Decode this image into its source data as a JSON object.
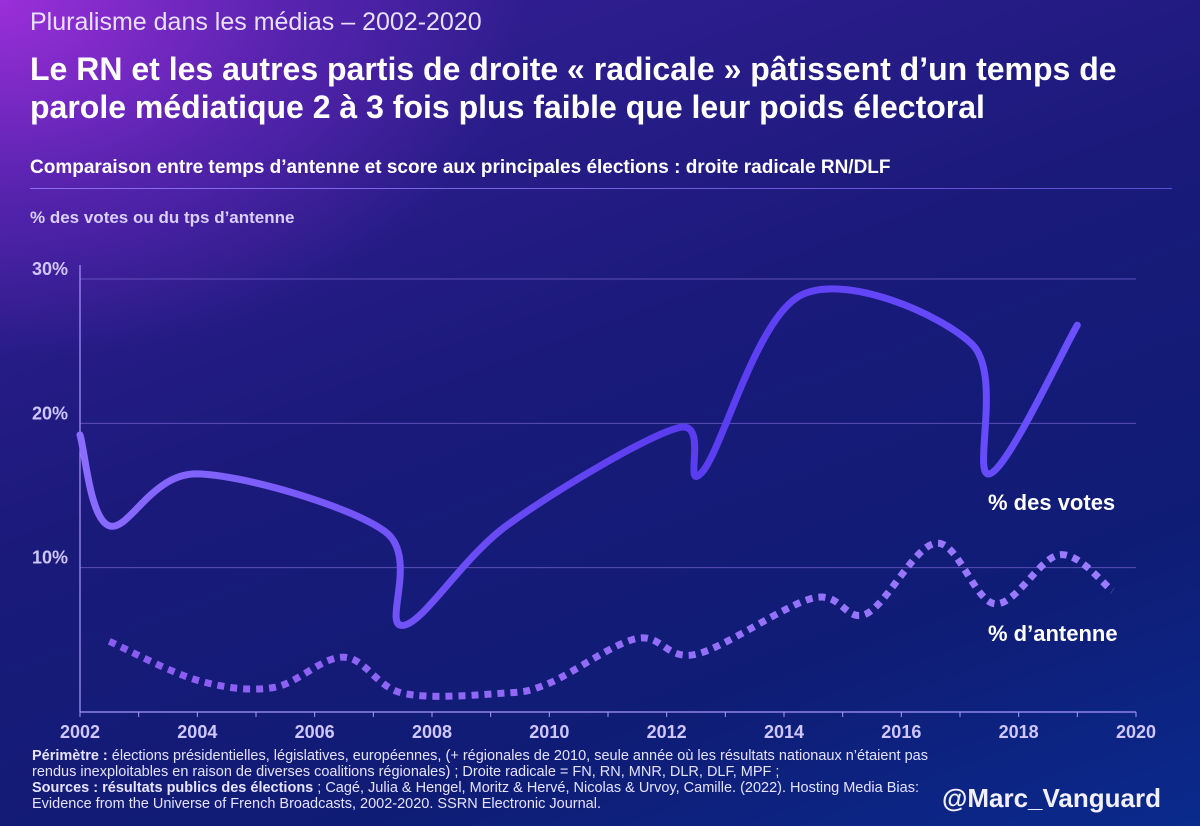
{
  "kicker": "Pluralisme dans les médias – 2002-2020",
  "headline": "Le RN et les autres partis de droite « radicale » pâtissent d’un temps de parole médiatique 2 à 3 fois plus faible que leur poids électoral",
  "subtitle": "Comparaison entre temps d’antenne et score aux principales élections : droite radicale RN/DLF",
  "footnote": {
    "perimetre_label": "Périmètre :",
    "perimetre_text": " élections présidentielles, législatives, européennes, (+ régionales de 2010, seule année où les résultats nationaux n’étaient pas rendus inexploitables en raison de diverses coalitions régionales) ; Droite radicale = FN, RN, MNR, DLR, DLF, MPF ;",
    "sources_label": "Sources : résultats publics des élections",
    "sources_text": " ; Cagé, Julia & Hengel, Moritz & Hervé, Nicolas & Urvoy, Camille. (2022). Hosting Media Bias: Evidence from the Universe of French Broadcasts, 2002-2020. SSRN Electronic Journal."
  },
  "handle": "@Marc_Vanguard",
  "colors": {
    "votes": "#5a3cf0",
    "antenne": "#8c6cf4",
    "grid": "#7864d2",
    "tick_text": "#cfc6ff"
  },
  "chart_data": {
    "type": "line",
    "title": "Comparaison entre temps d’antenne et score aux principales élections : droite radicale RN/DLF",
    "ylabel": "% des votes ou du tps d’antenne",
    "xlabel": "",
    "xlim": [
      2002,
      2020
    ],
    "ylim": [
      0,
      30
    ],
    "x_ticks": [
      {
        "value": 2002,
        "label": "2002"
      },
      {
        "value": 2004,
        "label": "2004"
      },
      {
        "value": 2006,
        "label": "2006"
      },
      {
        "value": 2008,
        "label": "2008"
      },
      {
        "value": 2010,
        "label": "2010"
      },
      {
        "value": 2012,
        "label": "2012"
      },
      {
        "value": 2014,
        "label": "2014"
      },
      {
        "value": 2016,
        "label": "2016"
      },
      {
        "value": 2018,
        "label": "2018"
      },
      {
        "value": 2020,
        "label": "2020"
      }
    ],
    "y_ticks": [
      {
        "value": 10,
        "label": "10%"
      },
      {
        "value": 20,
        "label": "20%"
      },
      {
        "value": 30,
        "label": "30%"
      }
    ],
    "grid": true,
    "series": [
      {
        "name": "% des votes",
        "style": "solid",
        "points": [
          [
            2002,
            19.2
          ],
          [
            2002.5,
            12.9
          ],
          [
            2004,
            16.5
          ],
          [
            2007.2,
            12.5
          ],
          [
            2007.5,
            6.0
          ],
          [
            2009.3,
            13.0
          ],
          [
            2012.2,
            19.7
          ],
          [
            2012.6,
            16.6
          ],
          [
            2014.3,
            28.9
          ],
          [
            2017.2,
            25.5
          ],
          [
            2017.5,
            16.5
          ],
          [
            2019.0,
            26.8
          ]
        ]
      },
      {
        "name": "% d’antenne",
        "style": "dotted",
        "points": [
          [
            2002.5,
            4.9
          ],
          [
            2004,
            2.2
          ],
          [
            2005.3,
            1.7
          ],
          [
            2006.5,
            3.8
          ],
          [
            2007.5,
            1.3
          ],
          [
            2009.2,
            1.3
          ],
          [
            2010,
            2.0
          ],
          [
            2011.5,
            5.1
          ],
          [
            2012.5,
            4.0
          ],
          [
            2014.5,
            7.9
          ],
          [
            2015.4,
            6.8
          ],
          [
            2016.6,
            11.7
          ],
          [
            2017.6,
            7.5
          ],
          [
            2018.7,
            10.9
          ],
          [
            2019.6,
            8.4
          ]
        ]
      }
    ]
  }
}
